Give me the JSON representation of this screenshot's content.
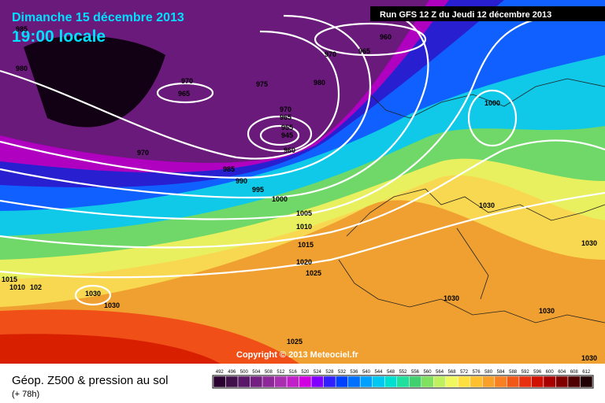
{
  "header": {
    "date": "Dimanche 15 décembre 2013",
    "time": "19:00 locale",
    "run": "Run GFS 12 Z du Jeudi 12 décembre 2013"
  },
  "copyright": "Copyright © 2013 Meteociel.fr",
  "isobar_labels": [
    "985",
    "980",
    "970",
    "965",
    "960",
    "970",
    "965",
    "975",
    "980",
    "970",
    "965",
    "955",
    "945",
    "960",
    "970",
    "985",
    "990",
    "995",
    "1000",
    "1005",
    "1010",
    "1015",
    "1020",
    "1025",
    "1000",
    "1030",
    "1015",
    "1010",
    "102",
    "1030",
    "1030",
    "1030",
    "1030",
    "1025",
    "1030",
    "1030"
  ],
  "footer": {
    "title": "Géop. Z500 & pression au sol",
    "lead": "(+ 78h)"
  },
  "colorbar": [
    {
      "value": 492,
      "color": "#2a0030"
    },
    {
      "value": 496,
      "color": "#40104a"
    },
    {
      "value": 500,
      "color": "#5a1868"
    },
    {
      "value": 504,
      "color": "#742080"
    },
    {
      "value": 508,
      "color": "#8c2898"
    },
    {
      "value": 512,
      "color": "#a830b0"
    },
    {
      "value": 516,
      "color": "#c020c8"
    },
    {
      "value": 520,
      "color": "#d000e0"
    },
    {
      "value": 524,
      "color": "#8000ff"
    },
    {
      "value": 528,
      "color": "#3020ff"
    },
    {
      "value": 532,
      "color": "#0040ff"
    },
    {
      "value": 536,
      "color": "#0070ff"
    },
    {
      "value": 540,
      "color": "#00a0ff"
    },
    {
      "value": 544,
      "color": "#00c8f0"
    },
    {
      "value": 548,
      "color": "#00e0d0"
    },
    {
      "value": 552,
      "color": "#20e0a0"
    },
    {
      "value": 556,
      "color": "#40d070"
    },
    {
      "value": 560,
      "color": "#80e060"
    },
    {
      "value": 564,
      "color": "#c0f060"
    },
    {
      "value": 568,
      "color": "#f0f860"
    },
    {
      "value": 572,
      "color": "#ffe040"
    },
    {
      "value": 576,
      "color": "#ffc030"
    },
    {
      "value": 580,
      "color": "#f8a028"
    },
    {
      "value": 584,
      "color": "#f88020"
    },
    {
      "value": 588,
      "color": "#f05818"
    },
    {
      "value": 592,
      "color": "#e83010"
    },
    {
      "value": 596,
      "color": "#d01000"
    },
    {
      "value": 600,
      "color": "#a80000"
    },
    {
      "value": 604,
      "color": "#800000"
    },
    {
      "value": 608,
      "color": "#500000"
    },
    {
      "value": 612,
      "color": "#200000"
    }
  ]
}
